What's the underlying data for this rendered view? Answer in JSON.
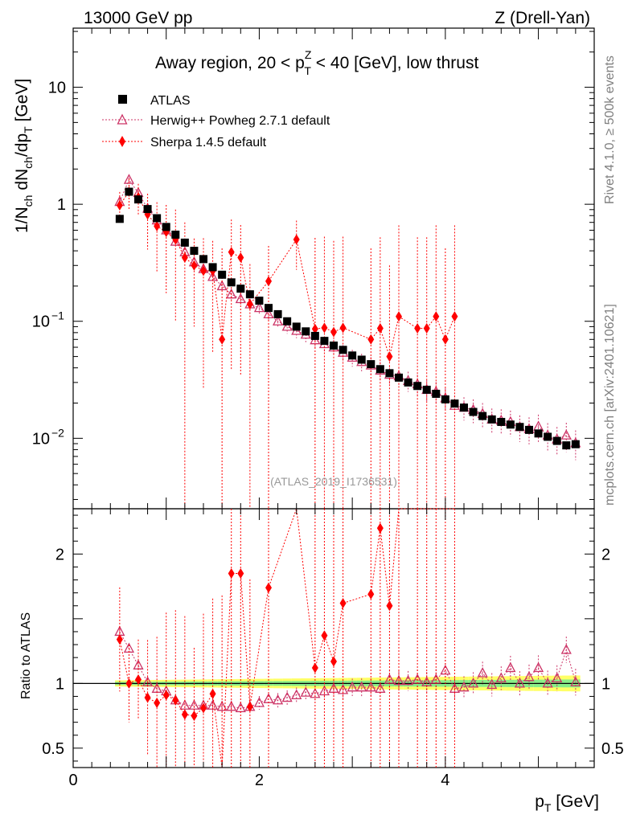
{
  "header": {
    "left": "13000 GeV pp",
    "right": "Z (Drell-Yan)"
  },
  "side_text": {
    "rivet": "Rivet 4.1.0, ≥ 500k events",
    "mcplots": "mcplots.cern.ch [arXiv:2401.10621]"
  },
  "chart_data": {
    "type": "scatter",
    "title": "Away region, 20 < p_T^Z < 40 [GeV], low thrust",
    "title_parts": {
      "pre": "Away region, 20 < p",
      "sup": "Z",
      "sub": "T",
      "post": " < 40 [GeV], low thrust"
    },
    "analysis_id": "(ATLAS_2019_I1736531)",
    "xlabel": "p_T [GeV]",
    "xlabel_parts": {
      "main": "p",
      "sub": "T",
      "post": " [GeV]"
    },
    "ylabel": "1/N_ch dN_ch/dp_T [GeV]",
    "ylabel_parts": {
      "a": "1/N",
      "a_sub": "ch",
      "b": " dN",
      "b_sub": "ch",
      "c": "/dp",
      "c_sub": "T",
      "d": " [GeV]"
    },
    "ratio_ylabel": "Ratio to ATLAS",
    "xlim": [
      0,
      5.6
    ],
    "ylim": [
      0.0025,
      32
    ],
    "ratio_ylim": [
      0.35,
      2.35
    ],
    "x_ticks": [
      "0",
      "2",
      "4"
    ],
    "x_tick_values": [
      0,
      2,
      4
    ],
    "y_ticks": [
      {
        "value": 10,
        "label": "10",
        "exp": ""
      },
      {
        "value": 1,
        "label": "1",
        "exp": ""
      },
      {
        "value": 0.1,
        "label": "10",
        "exp": "−1"
      },
      {
        "value": 0.01,
        "label": "10",
        "exp": "−2"
      }
    ],
    "ratio_ticks": [
      {
        "value": 2,
        "label": "2"
      },
      {
        "value": 1,
        "label": "1"
      },
      {
        "value": 0.5,
        "label": "0.5"
      }
    ],
    "legend": [
      {
        "name": "ATLAS",
        "marker": "square",
        "color": "#000000"
      },
      {
        "name": "Herwig++ Powheg 2.7.1 default",
        "marker": "triangle",
        "color": "#cc3366"
      },
      {
        "name": "Sherpa 1.4.5 default",
        "marker": "diamond",
        "color": "#ff0000"
      }
    ],
    "x": [
      0.5,
      0.6,
      0.7,
      0.8,
      0.9,
      1.0,
      1.1,
      1.2,
      1.3,
      1.4,
      1.5,
      1.6,
      1.7,
      1.8,
      1.9,
      2.0,
      2.1,
      2.2,
      2.3,
      2.4,
      2.5,
      2.6,
      2.7,
      2.8,
      2.9,
      3.0,
      3.1,
      3.2,
      3.3,
      3.4,
      3.5,
      3.6,
      3.7,
      3.8,
      3.9,
      4.0,
      4.1,
      4.2,
      4.3,
      4.4,
      4.5,
      4.6,
      4.7,
      4.8,
      4.9,
      5.0,
      5.1,
      5.2,
      5.3,
      5.4
    ],
    "series": [
      {
        "name": "ATLAS",
        "values": [
          0.75,
          1.28,
          1.1,
          0.91,
          0.76,
          0.64,
          0.55,
          0.47,
          0.4,
          0.34,
          0.29,
          0.25,
          0.215,
          0.19,
          0.17,
          0.15,
          0.13,
          0.115,
          0.1,
          0.09,
          0.082,
          0.075,
          0.068,
          0.062,
          0.057,
          0.051,
          0.047,
          0.043,
          0.039,
          0.036,
          0.033,
          0.03,
          0.028,
          0.026,
          0.024,
          0.0215,
          0.0198,
          0.0183,
          0.0168,
          0.0155,
          0.0145,
          0.0138,
          0.0131,
          0.0125,
          0.0118,
          0.011,
          0.0103,
          0.0095,
          0.0087,
          0.0089
        ]
      },
      {
        "name": "Herwig++ Powheg 2.7.1 default",
        "values": [
          1.05,
          1.62,
          1.25,
          0.92,
          0.73,
          0.6,
          0.48,
          0.39,
          0.32,
          0.28,
          0.24,
          0.2,
          0.17,
          0.155,
          0.14,
          0.13,
          0.115,
          0.1,
          0.09,
          0.083,
          0.077,
          0.069,
          0.064,
          0.06,
          0.054,
          0.049,
          0.045,
          0.042,
          0.038,
          0.035,
          0.034,
          0.031,
          0.029,
          0.026,
          0.025,
          0.022,
          0.019,
          0.0183,
          0.0175,
          0.0162,
          0.0145,
          0.0142,
          0.0138,
          0.0125,
          0.012,
          0.0126,
          0.0106,
          0.0098,
          0.0106,
          0.0091
        ],
        "ratio": [
          1.4,
          1.27,
          1.14,
          1.01,
          0.96,
          0.94,
          0.87,
          0.83,
          0.83,
          0.83,
          0.83,
          0.82,
          0.82,
          0.81,
          0.82,
          0.85,
          0.88,
          0.87,
          0.89,
          0.91,
          0.93,
          0.92,
          0.94,
          0.96,
          0.95,
          0.97,
          0.97,
          0.97,
          0.96,
          1.03,
          1.02,
          1.02,
          1.03,
          1.01,
          1.03,
          1.1,
          0.96,
          0.97,
          1.0,
          1.08,
          0.99,
          1.04,
          1.12,
          1.0,
          1.05,
          1.12,
          1.0,
          1.04,
          1.26,
          1.01
        ]
      },
      {
        "name": "Sherpa 1.4.5 default",
        "x": [
          0.5,
          0.6,
          0.7,
          0.8,
          0.9,
          1.0,
          1.1,
          1.2,
          1.3,
          1.4,
          1.5,
          1.6,
          1.7,
          1.8,
          1.9,
          2.1,
          2.4,
          2.6,
          2.7,
          2.8,
          2.9,
          3.2,
          3.3,
          3.4,
          3.5,
          3.7,
          3.8,
          3.9,
          4.0,
          4.1
        ],
        "values": [
          0.98,
          1.28,
          1.15,
          0.82,
          0.65,
          0.58,
          0.5,
          0.35,
          0.3,
          0.27,
          0.27,
          0.07,
          0.39,
          0.35,
          0.14,
          0.22,
          0.5,
          0.086,
          0.088,
          0.081,
          0.088,
          0.07,
          0.087,
          0.05,
          0.11,
          0.087,
          0.087,
          0.11,
          0.07,
          0.11
        ],
        "ratio": [
          1.34,
          null,
          1.03,
          0.89,
          0.85,
          0.91,
          0.87,
          0.76,
          null,
          0.81,
          0.92,
          null,
          1.85,
          1.85,
          0.82,
          1.74,
          null,
          1.12,
          1.37,
          1.17,
          1.62,
          1.69,
          2.2,
          1.6,
          null,
          null,
          null,
          null,
          null,
          null
        ]
      }
    ]
  }
}
